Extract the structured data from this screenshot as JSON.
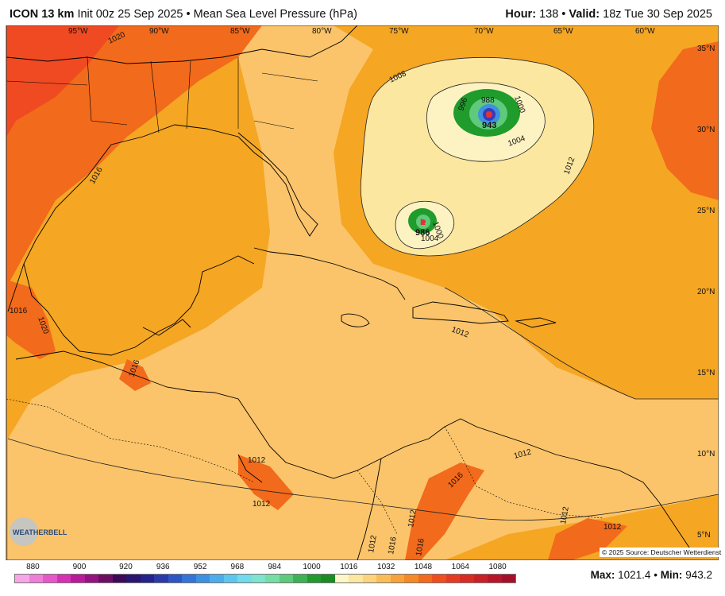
{
  "header": {
    "model": "ICON 13 km",
    "init": "Init 00z 25 Sep 2025",
    "bullet": "•",
    "field": "Mean Sea Level Pressure (hPa)",
    "hour_label": "Hour:",
    "hour_value": "138",
    "valid_label": "Valid:",
    "valid_value": "18z Tue 30 Sep 2025"
  },
  "map": {
    "lon_labels": [
      "95°W",
      "90°W",
      "85°W",
      "80°W",
      "75°W",
      "70°W",
      "65°W",
      "60°W"
    ],
    "lat_labels": [
      "35°N",
      "30°N",
      "25°N",
      "20°N",
      "15°N",
      "10°N",
      "5°N"
    ],
    "contour_labels": [
      "1020",
      "1016",
      "1016",
      "1020",
      "1016",
      "1008",
      "1000",
      "1004",
      "1012",
      "996",
      "988",
      "1000",
      "1004",
      "1012",
      "1012",
      "1012",
      "1012",
      "1016",
      "1012",
      "1016",
      "1016",
      "1012",
      "1012",
      "1012"
    ],
    "lows": [
      {
        "symbol": "L",
        "value": "943"
      },
      {
        "symbol": "L",
        "value": "986"
      }
    ],
    "colors": {
      "ocean_base": "#f5a623",
      "land_base": "#fbc46a",
      "ridge": "#f26a1b",
      "high": "#ef4a22",
      "trough_outer": "#fce7a1",
      "trough_inner": "#fdf3c2",
      "low_green": "#1f9c2b",
      "low_core": "#3a3ab5",
      "low_center": "#e23232"
    }
  },
  "colorbar": {
    "labels": [
      "880",
      "900",
      "920",
      "936",
      "952",
      "968",
      "984",
      "1000",
      "1016",
      "1032",
      "1048",
      "1064",
      "1080"
    ],
    "colors": [
      "#f6a6e6",
      "#ee7fd8",
      "#e657c9",
      "#d630b5",
      "#b81b99",
      "#93147e",
      "#6c0f63",
      "#3d0a57",
      "#2a1570",
      "#26228b",
      "#2b3aa8",
      "#2e55c3",
      "#3474d6",
      "#3e90e0",
      "#4cadea",
      "#5ec6ee",
      "#72daea",
      "#7fe3cf",
      "#78dca6",
      "#5fc97c",
      "#3fb154",
      "#24992f",
      "#1d8a26",
      "#fdf6c8",
      "#fce7a1",
      "#fbd47d",
      "#f9bd58",
      "#f7a23a",
      "#f48a25",
      "#f26a1b",
      "#ee4f1d",
      "#e63a22",
      "#d92b24",
      "#c92026",
      "#b81628",
      "#a50f2a"
    ]
  },
  "stats": {
    "max_label": "Max:",
    "max_value": "1021.4",
    "sep": "•",
    "min_label": "Min:",
    "min_value": "943.2"
  },
  "copyright": "© 2025 Source: Deutscher Wetterdienst",
  "logo_text": "WEATHERBELL"
}
